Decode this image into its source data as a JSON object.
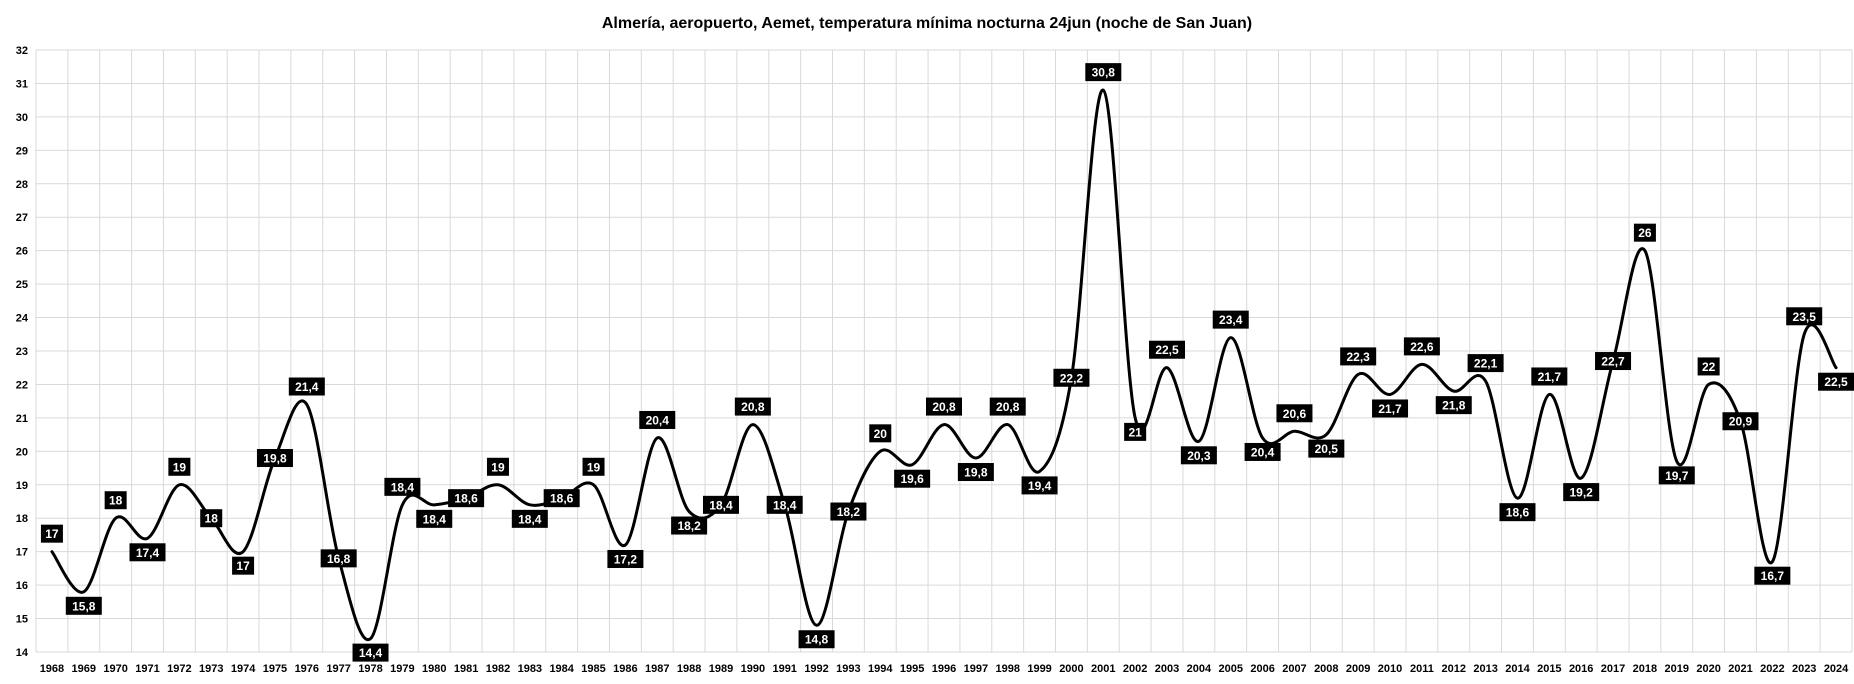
{
  "chart_data": {
    "type": "line",
    "title": "Almería, aeropuerto, Aemet, temperatura mínima nocturna 24jun (noche de San Juan)",
    "xlabel": "",
    "ylabel": "",
    "ylim": [
      14,
      32
    ],
    "yticks": [
      "14",
      "15",
      "16",
      "17",
      "18",
      "19",
      "20",
      "21",
      "22",
      "23",
      "24",
      "25",
      "26",
      "27",
      "28",
      "29",
      "30",
      "31",
      "32"
    ],
    "grid": true,
    "smooth": true,
    "categories": [
      "1968",
      "1969",
      "1970",
      "1971",
      "1972",
      "1973",
      "1974",
      "1975",
      "1976",
      "1977",
      "1978",
      "1979",
      "1980",
      "1981",
      "1982",
      "1983",
      "1984",
      "1985",
      "1986",
      "1987",
      "1988",
      "1989",
      "1990",
      "1991",
      "1992",
      "1993",
      "1994",
      "1995",
      "1996",
      "1997",
      "1998",
      "1999",
      "2000",
      "2001",
      "2002",
      "2003",
      "2004",
      "2005",
      "2006",
      "2007",
      "2008",
      "2009",
      "2010",
      "2011",
      "2012",
      "2013",
      "2014",
      "2015",
      "2016",
      "2017",
      "2018",
      "2019",
      "2020",
      "2021",
      "2022",
      "2023",
      "2024"
    ],
    "values": [
      17,
      15.8,
      18,
      17.4,
      19,
      18,
      17,
      19.8,
      21.4,
      16.8,
      14.4,
      18.4,
      18.4,
      18.6,
      19,
      18.4,
      18.6,
      19,
      17.2,
      20.4,
      18.2,
      18.4,
      20.8,
      18.4,
      14.8,
      18.2,
      20,
      19.6,
      20.8,
      19.8,
      20.8,
      19.4,
      22.2,
      30.8,
      21,
      22.5,
      20.3,
      23.4,
      20.4,
      20.6,
      20.5,
      22.3,
      21.7,
      22.6,
      21.8,
      22.1,
      18.6,
      21.7,
      19.2,
      22.7,
      26,
      19.7,
      22,
      20.9,
      16.7,
      23.5,
      22.5
    ],
    "data_labels": [
      "17",
      "15,8",
      "18",
      "17,4",
      "19",
      "18",
      "17",
      "19,8",
      "21,4",
      "16,8",
      "14,4",
      "18,4",
      "18,4",
      "18,6",
      "19",
      "18,4",
      "18,6",
      "19",
      "17,2",
      "20,4",
      "18,2",
      "18,4",
      "20,8",
      "18,4",
      "14,8",
      "18,2",
      "20",
      "19,6",
      "20,8",
      "19,8",
      "20,8",
      "19,4",
      "22,2",
      "30,8",
      "21",
      "22,5",
      "20,3",
      "23,4",
      "20,4",
      "20,6",
      "20,5",
      "22,3",
      "21,7",
      "22,6",
      "21,8",
      "22,1",
      "18,6",
      "21,7",
      "19,2",
      "22,7",
      "26",
      "19,7",
      "22",
      "20,9",
      "16,7",
      "23,5",
      "22,5"
    ],
    "colors": {
      "line": "#000000",
      "label_bg": "#000000",
      "label_text": "#ffffff",
      "grid": "#d9d9d9"
    }
  }
}
